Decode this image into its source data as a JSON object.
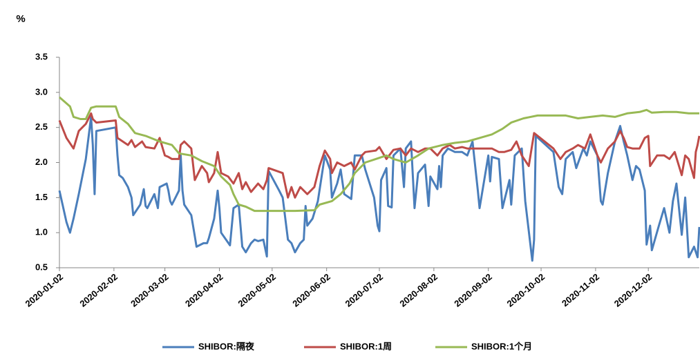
{
  "chart_data": {
    "type": "line",
    "ylabel": "%",
    "xlim": [
      "2020-01-02",
      "2020-12-31"
    ],
    "xticks": [
      "2020-01-02",
      "2020-02-02",
      "2020-03-02",
      "2020-04-02",
      "2020-05-02",
      "2020-06-02",
      "2020-07-02",
      "2020-08-02",
      "2020-09-02",
      "2020-10-02",
      "2020-11-02",
      "2020-12-02"
    ],
    "ylim": [
      0.5,
      3.5
    ],
    "yticks": [
      {
        "value": 0.5,
        "label": "0.5"
      },
      {
        "value": 1,
        "label": "1.0"
      },
      1.5,
      {
        "value": 2,
        "label": "2.0"
      },
      2.5,
      {
        "value": 3,
        "label": "3.0"
      },
      3.5
    ],
    "grid": false,
    "legend": "bottom",
    "series": [
      {
        "name": "SHIBOR:隔夜",
        "color": "#4a7ebb",
        "x": [
          "2020-01-02",
          "2020-01-06",
          "2020-01-08",
          "2020-01-10",
          "2020-01-13",
          "2020-01-17",
          "2020-01-20",
          "2020-01-21",
          "2020-01-22",
          "2020-01-23",
          "2020-02-03",
          "2020-02-04",
          "2020-02-05",
          "2020-02-07",
          "2020-02-10",
          "2020-02-12",
          "2020-02-13",
          "2020-02-17",
          "2020-02-19",
          "2020-02-20",
          "2020-02-21",
          "2020-02-25",
          "2020-02-27",
          "2020-02-28",
          "2020-03-03",
          "2020-03-04",
          "2020-03-05",
          "2020-03-06",
          "2020-03-10",
          "2020-03-11",
          "2020-03-12",
          "2020-03-13",
          "2020-03-17",
          "2020-03-19",
          "2020-03-20",
          "2020-03-24",
          "2020-03-26",
          "2020-03-27",
          "2020-03-30",
          "2020-04-01",
          "2020-04-02",
          "2020-04-03",
          "2020-04-08",
          "2020-04-10",
          "2020-04-13",
          "2020-04-15",
          "2020-04-17",
          "2020-04-20",
          "2020-04-22",
          "2020-04-24",
          "2020-04-27",
          "2020-04-29",
          "2020-04-30",
          "2020-05-06",
          "2020-05-08",
          "2020-05-11",
          "2020-05-13",
          "2020-05-15",
          "2020-05-18",
          "2020-05-20",
          "2020-05-21",
          "2020-05-22",
          "2020-05-25",
          "2020-05-28",
          "2020-06-01",
          "2020-06-04",
          "2020-06-05",
          "2020-06-08",
          "2020-06-10",
          "2020-06-12",
          "2020-06-16",
          "2020-06-18",
          "2020-06-22",
          "2020-06-24",
          "2020-06-29",
          "2020-07-01",
          "2020-07-02",
          "2020-07-03",
          "2020-07-06",
          "2020-07-07",
          "2020-07-09",
          "2020-07-10",
          "2020-07-14",
          "2020-07-16",
          "2020-07-17",
          "2020-07-20",
          "2020-07-22",
          "2020-07-24",
          "2020-07-28",
          "2020-07-30",
          "2020-07-31",
          "2020-08-04",
          "2020-08-05",
          "2020-08-06",
          "2020-08-07",
          "2020-08-10",
          "2020-08-14",
          "2020-08-18",
          "2020-08-21",
          "2020-08-24",
          "2020-08-27",
          "2020-08-28",
          "2020-09-02",
          "2020-09-03",
          "2020-09-04",
          "2020-09-08",
          "2020-09-10",
          "2020-09-14",
          "2020-09-15",
          "2020-09-17",
          "2020-09-21",
          "2020-09-23",
          "2020-09-27",
          "2020-09-28",
          "2020-09-29",
          "2020-10-09",
          "2020-10-12",
          "2020-10-14",
          "2020-10-16",
          "2020-10-20",
          "2020-10-22",
          "2020-10-26",
          "2020-10-28",
          "2020-10-30",
          "2020-11-03",
          "2020-11-05",
          "2020-11-06",
          "2020-11-09",
          "2020-11-13",
          "2020-11-16",
          "2020-11-18",
          "2020-11-20",
          "2020-11-23",
          "2020-11-25",
          "2020-11-27",
          "2020-11-30",
          "2020-12-01",
          "2020-12-03",
          "2020-12-04",
          "2020-12-08",
          "2020-12-11",
          "2020-12-14",
          "2020-12-16",
          "2020-12-18",
          "2020-12-21",
          "2020-12-23",
          "2020-12-25",
          "2020-12-28",
          "2020-12-30",
          "2020-12-31"
        ],
        "values": [
          1.6,
          1.15,
          1.0,
          1.2,
          1.55,
          2.05,
          2.65,
          2.25,
          1.55,
          2.45,
          2.5,
          2.1,
          1.82,
          1.78,
          1.65,
          1.5,
          1.25,
          1.4,
          1.62,
          1.38,
          1.35,
          1.55,
          1.35,
          1.65,
          1.7,
          1.6,
          1.45,
          1.4,
          1.6,
          2.1,
          1.6,
          1.4,
          1.25,
          0.95,
          0.8,
          0.85,
          0.85,
          0.92,
          1.2,
          1.6,
          1.35,
          1.0,
          0.82,
          1.35,
          1.4,
          0.8,
          0.72,
          0.85,
          0.9,
          0.88,
          0.9,
          0.66,
          1.88,
          1.6,
          1.5,
          0.9,
          0.85,
          0.72,
          0.85,
          0.9,
          1.38,
          1.1,
          1.2,
          1.45,
          2.1,
          1.9,
          1.5,
          1.7,
          1.9,
          1.55,
          1.48,
          2.1,
          2.1,
          1.9,
          1.5,
          1.1,
          1.02,
          1.75,
          1.92,
          1.38,
          1.36,
          2.1,
          2.2,
          1.65,
          2.2,
          2.3,
          1.35,
          1.85,
          1.97,
          1.38,
          1.8,
          1.62,
          1.95,
          1.65,
          2.1,
          2.2,
          2.15,
          2.15,
          2.1,
          2.3,
          1.6,
          1.35,
          2.1,
          1.73,
          2.08,
          2.05,
          1.35,
          1.75,
          1.4,
          2.1,
          2.2,
          1.45,
          0.6,
          0.9,
          2.38,
          2.15,
          1.65,
          1.55,
          2.05,
          2.15,
          1.92,
          2.2,
          2.1,
          2.3,
          2.1,
          1.45,
          1.4,
          1.85,
          2.3,
          2.52,
          2.3,
          2.1,
          1.75,
          1.95,
          1.9,
          1.6,
          0.83,
          1.1,
          0.75,
          1.1,
          1.35,
          1.0,
          1.45,
          1.7,
          0.97,
          1.5,
          0.65,
          0.8,
          0.65,
          1.08
        ]
      },
      {
        "name": "SHIBOR:1周",
        "color": "#be4b48",
        "x": [
          "2020-01-02",
          "2020-01-06",
          "2020-01-10",
          "2020-01-13",
          "2020-01-17",
          "2020-01-20",
          "2020-01-21",
          "2020-01-23",
          "2020-02-03",
          "2020-02-04",
          "2020-02-07",
          "2020-02-10",
          "2020-02-12",
          "2020-02-14",
          "2020-02-18",
          "2020-02-20",
          "2020-02-25",
          "2020-02-28",
          "2020-03-02",
          "2020-03-04",
          "2020-03-06",
          "2020-03-10",
          "2020-03-11",
          "2020-03-13",
          "2020-03-17",
          "2020-03-19",
          "2020-03-23",
          "2020-03-26",
          "2020-03-27",
          "2020-03-30",
          "2020-04-01",
          "2020-04-03",
          "2020-04-07",
          "2020-04-10",
          "2020-04-13",
          "2020-04-15",
          "2020-04-17",
          "2020-04-20",
          "2020-04-24",
          "2020-04-27",
          "2020-04-29",
          "2020-04-30",
          "2020-05-08",
          "2020-05-11",
          "2020-05-13",
          "2020-05-15",
          "2020-05-18",
          "2020-05-22",
          "2020-05-26",
          "2020-05-29",
          "2020-06-01",
          "2020-06-04",
          "2020-06-05",
          "2020-06-08",
          "2020-06-12",
          "2020-06-16",
          "2020-06-18",
          "2020-06-22",
          "2020-06-24",
          "2020-06-30",
          "2020-07-02",
          "2020-07-06",
          "2020-07-10",
          "2020-07-14",
          "2020-07-17",
          "2020-07-20",
          "2020-07-24",
          "2020-07-28",
          "2020-07-31",
          "2020-08-04",
          "2020-08-07",
          "2020-08-11",
          "2020-08-14",
          "2020-08-18",
          "2020-08-21",
          "2020-08-25",
          "2020-08-31",
          "2020-09-04",
          "2020-09-08",
          "2020-09-11",
          "2020-09-15",
          "2020-09-18",
          "2020-09-21",
          "2020-09-25",
          "2020-09-28",
          "2020-10-09",
          "2020-10-13",
          "2020-10-16",
          "2020-10-20",
          "2020-10-23",
          "2020-10-27",
          "2020-10-30",
          "2020-11-03",
          "2020-11-05",
          "2020-11-09",
          "2020-11-13",
          "2020-11-16",
          "2020-11-18",
          "2020-11-20",
          "2020-11-23",
          "2020-11-27",
          "2020-11-30",
          "2020-12-02",
          "2020-12-03",
          "2020-12-07",
          "2020-12-11",
          "2020-12-14",
          "2020-12-17",
          "2020-12-21",
          "2020-12-23",
          "2020-12-25",
          "2020-12-28",
          "2020-12-29",
          "2020-12-30",
          "2020-12-31"
        ],
        "values": [
          2.6,
          2.35,
          2.2,
          2.45,
          2.55,
          2.7,
          2.62,
          2.57,
          2.6,
          2.35,
          2.3,
          2.25,
          2.32,
          2.22,
          2.3,
          2.22,
          2.2,
          2.35,
          2.1,
          2.08,
          2.05,
          2.05,
          2.25,
          2.3,
          2.2,
          1.75,
          1.95,
          1.85,
          1.72,
          1.85,
          2.15,
          1.85,
          1.8,
          1.7,
          1.85,
          1.62,
          1.72,
          1.58,
          1.7,
          1.62,
          1.75,
          1.92,
          1.85,
          1.5,
          1.65,
          1.5,
          1.65,
          1.55,
          1.65,
          1.95,
          2.17,
          2.05,
          1.85,
          2.0,
          1.95,
          2.0,
          1.9,
          2.1,
          2.15,
          2.17,
          2.22,
          2.05,
          2.18,
          2.2,
          2.1,
          2.2,
          2.15,
          2.2,
          2.2,
          2.1,
          2.2,
          2.25,
          2.2,
          2.22,
          2.2,
          2.2,
          2.2,
          2.2,
          2.15,
          2.15,
          2.18,
          2.3,
          2.1,
          1.95,
          2.42,
          2.2,
          2.05,
          2.15,
          2.2,
          2.25,
          2.2,
          2.4,
          2.1,
          2.0,
          2.2,
          2.3,
          2.45,
          2.35,
          2.22,
          2.2,
          2.2,
          2.35,
          2.38,
          1.95,
          2.1,
          2.1,
          2.05,
          2.15,
          1.82,
          2.1,
          2.05,
          1.78,
          2.15,
          2.25,
          2.38
        ]
      },
      {
        "name": "SHIBOR:1个月",
        "color": "#98b954",
        "x": [
          "2020-01-02",
          "2020-01-08",
          "2020-01-10",
          "2020-01-14",
          "2020-01-17",
          "2020-01-20",
          "2020-01-23",
          "2020-02-03",
          "2020-02-05",
          "2020-02-10",
          "2020-02-14",
          "2020-02-20",
          "2020-02-28",
          "2020-03-06",
          "2020-03-10",
          "2020-03-17",
          "2020-03-23",
          "2020-03-30",
          "2020-04-03",
          "2020-04-08",
          "2020-04-10",
          "2020-04-13",
          "2020-04-17",
          "2020-04-22",
          "2020-05-15",
          "2020-05-26",
          "2020-05-29",
          "2020-06-05",
          "2020-06-10",
          "2020-06-15",
          "2020-06-18",
          "2020-06-24",
          "2020-06-30",
          "2020-07-06",
          "2020-07-10",
          "2020-07-17",
          "2020-07-24",
          "2020-07-30",
          "2020-08-07",
          "2020-08-14",
          "2020-08-21",
          "2020-08-28",
          "2020-09-04",
          "2020-09-10",
          "2020-09-15",
          "2020-09-22",
          "2020-09-30",
          "2020-10-16",
          "2020-10-23",
          "2020-10-30",
          "2020-11-06",
          "2020-11-13",
          "2020-11-20",
          "2020-11-27",
          "2020-12-01",
          "2020-12-04",
          "2020-12-11",
          "2020-12-18",
          "2020-12-25",
          "2020-12-31"
        ],
        "values": [
          2.93,
          2.8,
          2.65,
          2.62,
          2.62,
          2.78,
          2.8,
          2.8,
          2.65,
          2.55,
          2.42,
          2.38,
          2.3,
          2.25,
          2.13,
          2.1,
          2.02,
          1.95,
          1.8,
          1.68,
          1.55,
          1.4,
          1.37,
          1.31,
          1.31,
          1.32,
          1.4,
          1.45,
          1.55,
          1.7,
          1.85,
          2.0,
          2.05,
          2.1,
          2.05,
          2.0,
          2.1,
          2.2,
          2.25,
          2.28,
          2.3,
          2.35,
          2.4,
          2.48,
          2.57,
          2.63,
          2.67,
          2.67,
          2.63,
          2.65,
          2.67,
          2.65,
          2.7,
          2.72,
          2.75,
          2.71,
          2.72,
          2.72,
          2.7,
          2.7
        ]
      }
    ]
  }
}
